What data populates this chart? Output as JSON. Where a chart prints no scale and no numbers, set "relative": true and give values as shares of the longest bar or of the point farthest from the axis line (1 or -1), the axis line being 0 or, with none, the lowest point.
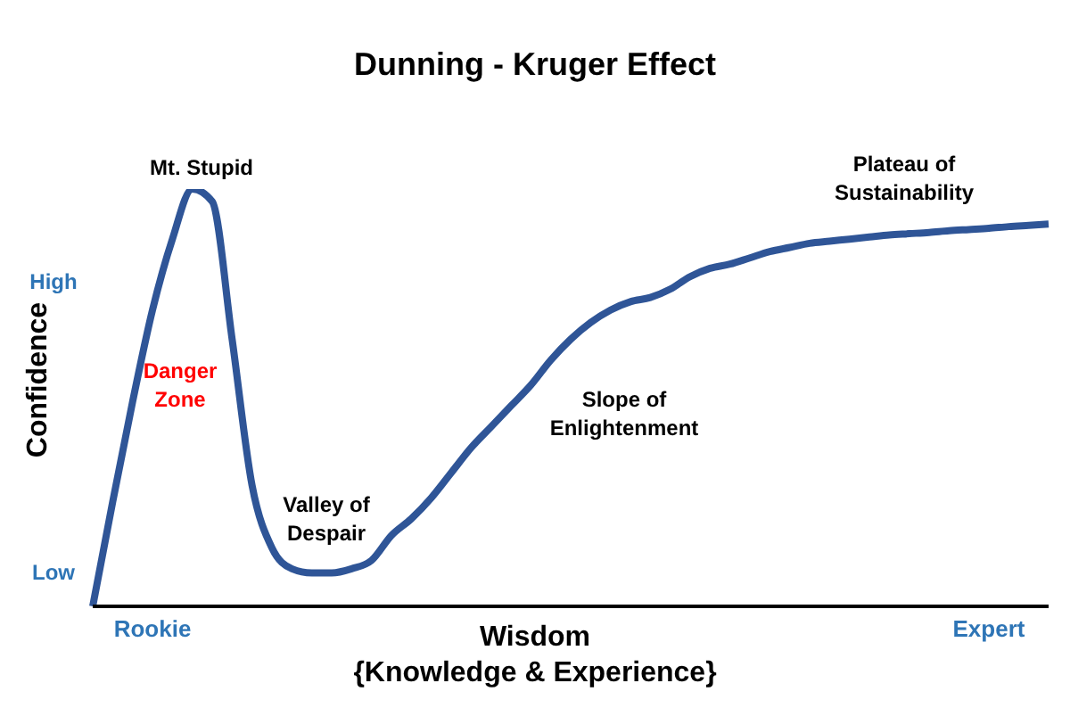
{
  "chart_data": {
    "type": "line",
    "title": "Dunning - Kruger Effect",
    "xlabel": "Wisdom\n{Knowledge & Experience}",
    "ylabel": "Confidence",
    "relative": true,
    "grid": false,
    "legend": false,
    "marker": "none",
    "line_style": "solid",
    "categories": [
      null,
      null,
      null,
      "Rookie",
      null,
      null,
      null,
      null,
      null,
      null,
      null,
      null,
      null,
      null,
      null,
      null,
      null,
      null,
      null,
      null,
      null,
      null,
      null,
      null,
      null,
      null,
      null,
      null,
      null,
      null,
      null,
      null,
      null,
      null,
      null,
      null,
      null,
      null,
      null,
      null,
      null,
      null,
      null,
      null,
      null,
      "Expert",
      null,
      null,
      null
    ],
    "series": [
      {
        "color": "#2f5597",
        "values": [
          0,
          0.25,
          0.49,
          0.71,
          0.88,
          1.0,
          0.97,
          0.64,
          0.29,
          0.14,
          0.09,
          0.08,
          0.08,
          0.09,
          0.11,
          0.17,
          0.21,
          0.26,
          0.32,
          0.38,
          0.43,
          0.48,
          0.53,
          0.59,
          0.64,
          0.68,
          0.71,
          0.73,
          0.74,
          0.76,
          0.79,
          0.81,
          0.82,
          0.835,
          0.85,
          0.86,
          0.87,
          0.875,
          0.88,
          0.885,
          0.89,
          0.893,
          0.896,
          0.9,
          0.903,
          0.906,
          0.91,
          0.913,
          0.916
        ]
      }
    ],
    "annotations": [
      "High",
      "Low",
      "Mt. Stupid",
      "Danger Zone",
      "Valley of Despair",
      "Slope of Enlightenment",
      "Plateau of Sustainability"
    ]
  }
}
